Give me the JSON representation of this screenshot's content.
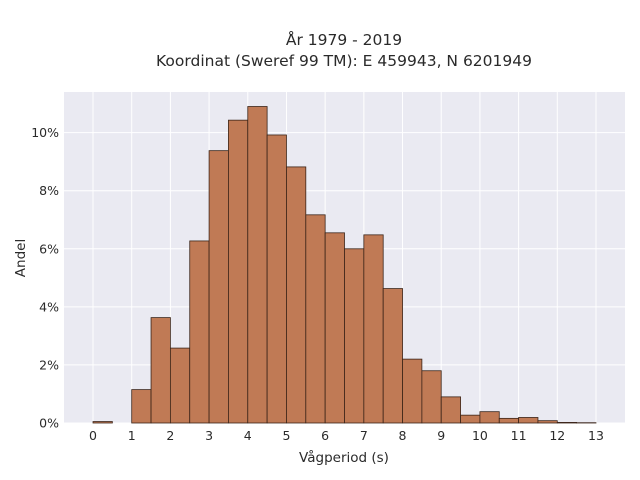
{
  "chart_data": {
    "type": "bar",
    "title_lines": [
      "År 1979 - 2019",
      "Koordinat (Sweref 99 TM): E 459943, N 6201949"
    ],
    "xlabel": "Vågperiod (s)",
    "ylabel": "Andel",
    "xlim": [
      -0.75,
      13.75
    ],
    "ylim": [
      0,
      11.4
    ],
    "x_ticks": [
      0,
      1,
      2,
      3,
      4,
      5,
      6,
      7,
      8,
      9,
      10,
      11,
      12,
      13
    ],
    "y_ticks": [
      0,
      2,
      4,
      6,
      8,
      10
    ],
    "y_tick_labels": [
      "0%",
      "2%",
      "4%",
      "6%",
      "8%",
      "10%"
    ],
    "bin_width": 0.5,
    "bins": [
      {
        "x0": 0.0,
        "value": 0.05
      },
      {
        "x0": 1.0,
        "value": 1.15
      },
      {
        "x0": 1.5,
        "value": 3.63
      },
      {
        "x0": 2.0,
        "value": 2.58
      },
      {
        "x0": 2.5,
        "value": 6.27
      },
      {
        "x0": 3.0,
        "value": 9.38
      },
      {
        "x0": 3.5,
        "value": 10.43
      },
      {
        "x0": 4.0,
        "value": 10.9
      },
      {
        "x0": 4.5,
        "value": 9.92
      },
      {
        "x0": 5.0,
        "value": 8.82
      },
      {
        "x0": 5.5,
        "value": 7.17
      },
      {
        "x0": 6.0,
        "value": 6.55
      },
      {
        "x0": 6.5,
        "value": 6.0
      },
      {
        "x0": 7.0,
        "value": 6.48
      },
      {
        "x0": 7.5,
        "value": 4.63
      },
      {
        "x0": 8.0,
        "value": 2.2
      },
      {
        "x0": 8.5,
        "value": 1.8
      },
      {
        "x0": 9.0,
        "value": 0.9
      },
      {
        "x0": 9.5,
        "value": 0.27
      },
      {
        "x0": 10.0,
        "value": 0.39
      },
      {
        "x0": 10.5,
        "value": 0.16
      },
      {
        "x0": 11.0,
        "value": 0.19
      },
      {
        "x0": 11.5,
        "value": 0.08
      },
      {
        "x0": 12.0,
        "value": 0.02
      },
      {
        "x0": 12.5,
        "value": 0.01
      }
    ],
    "colors": {
      "bar_fill": "#c07a55",
      "bar_stroke": "#3b2418",
      "plot_bg": "#eaeaf2",
      "grid": "#ffffff"
    },
    "grid": true,
    "legend": "none"
  }
}
